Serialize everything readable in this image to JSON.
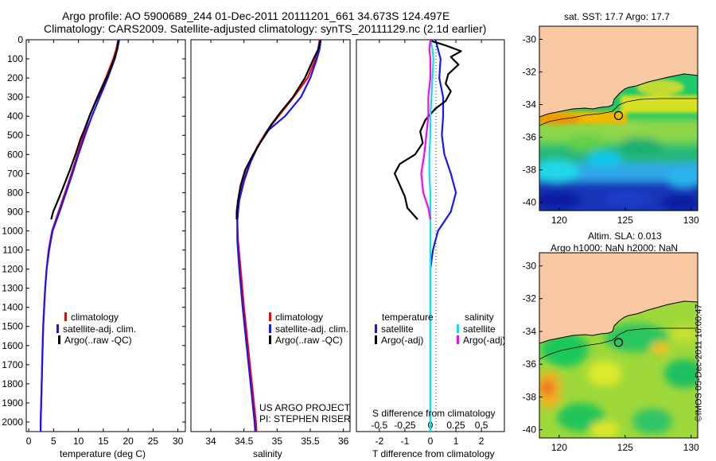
{
  "header": {
    "line1": "Argo profile: AO 5900689_244 01-Dec-2011 20111201_661 34.673S 124.497E",
    "line2": "Climatology: CARS2009. Satellite-adjusted climatology: synTS_20111129.nc (2.1d earlier)"
  },
  "colors": {
    "climatology": "#ff0000",
    "satellite": "#1515ff",
    "argo": "#000000",
    "sal_satellite": "#00e5ee",
    "sal_argo": "#ff00ff",
    "land": "#f8c9a0"
  },
  "chart_data": [
    {
      "type": "line",
      "xlabel": "temperature (deg C)",
      "ylabel": "",
      "xlim": [
        -0.5,
        31.5
      ],
      "ylim": [
        2050,
        0
      ],
      "xticks": [
        0,
        5,
        10,
        15,
        20,
        25,
        30
      ],
      "yticks": [
        0,
        100,
        200,
        300,
        400,
        500,
        600,
        700,
        800,
        900,
        1000,
        1100,
        1200,
        1300,
        1400,
        1500,
        1600,
        1700,
        1800,
        1900,
        2000
      ],
      "legend": [
        "climatology",
        "satellite-adj. clim.",
        "Argo(..raw -QC)"
      ],
      "legend_position": "lower-right",
      "series": [
        {
          "name": "climatology",
          "color": "#ff0000",
          "points": [
            [
              18,
              0
            ],
            [
              17.6,
              50
            ],
            [
              17,
              100
            ],
            [
              15.5,
              200
            ],
            [
              13.8,
              300
            ],
            [
              12.2,
              400
            ],
            [
              11,
              500
            ],
            [
              9.8,
              600
            ],
            [
              8.6,
              700
            ],
            [
              7.3,
              800
            ],
            [
              6,
              900
            ],
            [
              4.7,
              1000
            ],
            [
              4,
              1100
            ],
            [
              3.6,
              1200
            ],
            [
              3.3,
              1300
            ],
            [
              3.1,
              1400
            ],
            [
              2.9,
              1500
            ],
            [
              2.8,
              1600
            ],
            [
              2.7,
              1700
            ],
            [
              2.6,
              1800
            ],
            [
              2.5,
              1900
            ],
            [
              2.4,
              2000
            ],
            [
              2.4,
              2050
            ]
          ]
        },
        {
          "name": "satellite-adj. clim.",
          "color": "#1515ff",
          "points": [
            [
              18.2,
              0
            ],
            [
              17.8,
              50
            ],
            [
              17.3,
              100
            ],
            [
              15.9,
              200
            ],
            [
              14.3,
              300
            ],
            [
              12.7,
              400
            ],
            [
              11.3,
              500
            ],
            [
              10,
              600
            ],
            [
              8.8,
              700
            ],
            [
              7.5,
              800
            ],
            [
              6.2,
              900
            ],
            [
              4.8,
              1000
            ],
            [
              4.1,
              1100
            ],
            [
              3.6,
              1200
            ],
            [
              3.3,
              1300
            ],
            [
              3.1,
              1400
            ],
            [
              2.9,
              1500
            ],
            [
              2.8,
              1600
            ],
            [
              2.7,
              1700
            ],
            [
              2.6,
              1800
            ],
            [
              2.5,
              1900
            ],
            [
              2.4,
              2000
            ],
            [
              2.4,
              2050
            ]
          ]
        },
        {
          "name": "Argo(..raw -QC)",
          "color": "#000000",
          "points": [
            [
              18,
              5
            ],
            [
              17.8,
              50
            ],
            [
              17.2,
              100
            ],
            [
              16,
              180
            ],
            [
              14.6,
              260
            ],
            [
              13.2,
              340
            ],
            [
              12.2,
              400
            ],
            [
              11.2,
              470
            ],
            [
              10.4,
              520
            ],
            [
              9.4,
              600
            ],
            [
              8.3,
              680
            ],
            [
              7.1,
              760
            ],
            [
              6.2,
              820
            ],
            [
              5.4,
              870
            ],
            [
              4.9,
              900
            ],
            [
              4.5,
              940
            ]
          ]
        }
      ]
    },
    {
      "type": "line",
      "xlabel": "salinity",
      "ylabel": "",
      "xlim": [
        33.7,
        36.1
      ],
      "ylim": [
        2050,
        0
      ],
      "xticks": [
        34,
        34.5,
        35,
        35.5,
        36
      ],
      "legend": [
        "climatology",
        "satellite-adj. clim.",
        "Argo(..raw -QC)"
      ],
      "legend_position": "lower-right",
      "annotations": [
        "US ARGO PROJECT",
        "PI: STEPHEN RISER"
      ],
      "series": [
        {
          "name": "climatology",
          "color": "#ff0000",
          "points": [
            [
              35.64,
              0
            ],
            [
              35.62,
              50
            ],
            [
              35.58,
              100
            ],
            [
              35.46,
              200
            ],
            [
              35.25,
              300
            ],
            [
              35.02,
              400
            ],
            [
              34.84,
              480
            ],
            [
              34.7,
              560
            ],
            [
              34.58,
              650
            ],
            [
              34.48,
              750
            ],
            [
              34.42,
              850
            ],
            [
              34.4,
              950
            ],
            [
              34.41,
              1050
            ],
            [
              34.45,
              1200
            ],
            [
              34.5,
              1400
            ],
            [
              34.56,
              1600
            ],
            [
              34.62,
              1800
            ],
            [
              34.68,
              2000
            ],
            [
              34.69,
              2050
            ]
          ]
        },
        {
          "name": "satellite-adj. clim.",
          "color": "#1515ff",
          "points": [
            [
              35.66,
              0
            ],
            [
              35.64,
              50
            ],
            [
              35.6,
              100
            ],
            [
              35.5,
              200
            ],
            [
              35.36,
              300
            ],
            [
              35.12,
              400
            ],
            [
              34.88,
              470
            ],
            [
              34.72,
              550
            ],
            [
              34.6,
              640
            ],
            [
              34.5,
              740
            ],
            [
              34.43,
              840
            ],
            [
              34.4,
              940
            ],
            [
              34.4,
              1050
            ],
            [
              34.43,
              1200
            ],
            [
              34.48,
              1400
            ],
            [
              34.54,
              1600
            ],
            [
              34.6,
              1800
            ],
            [
              34.66,
              2000
            ],
            [
              34.67,
              2050
            ]
          ]
        },
        {
          "name": "Argo(..raw -QC)",
          "color": "#000000",
          "points": [
            [
              35.65,
              5
            ],
            [
              35.62,
              50
            ],
            [
              35.55,
              100
            ],
            [
              35.42,
              200
            ],
            [
              35.24,
              300
            ],
            [
              35.05,
              380
            ],
            [
              34.9,
              450
            ],
            [
              34.78,
              520
            ],
            [
              34.64,
              600
            ],
            [
              34.52,
              680
            ],
            [
              34.45,
              760
            ],
            [
              34.41,
              840
            ],
            [
              34.39,
              900
            ],
            [
              34.39,
              940
            ]
          ]
        }
      ]
    },
    {
      "type": "line",
      "xlabel": "T difference from climatology",
      "ylabel": "",
      "xlim": [
        -2.9,
        2.9
      ],
      "ylim": [
        2050,
        0
      ],
      "xticks": [
        -2,
        -1,
        0,
        1,
        2
      ],
      "secondary_axis": {
        "label": "S difference from climatology",
        "xticks": [
          -0.5,
          -0.25,
          0,
          0.25,
          0.5
        ],
        "xticklabels": [
          "-0.5",
          "-0.25",
          "0",
          "0.25",
          "0.5"
        ]
      },
      "legend": {
        "temperature": {
          "title": "temperature",
          "entries": [
            "satellite",
            "Argo(-adj)"
          ]
        },
        "salinity": {
          "title": "salinity",
          "entries": [
            "satellite",
            "Argo(-adj)"
          ]
        }
      },
      "legend_position": "lower",
      "series": [
        {
          "name": "temperature satellite",
          "color": "#1515ff",
          "points": [
            [
              0.2,
              0
            ],
            [
              0.3,
              50
            ],
            [
              0.4,
              100
            ],
            [
              0.35,
              200
            ],
            [
              0.5,
              300
            ],
            [
              0.5,
              400
            ],
            [
              0.45,
              500
            ],
            [
              0.55,
              600
            ],
            [
              0.8,
              700
            ],
            [
              1,
              800
            ],
            [
              0.8,
              900
            ],
            [
              0.3,
              1000
            ],
            [
              0.1,
              1100
            ],
            [
              0,
              1200
            ],
            [
              0,
              1400
            ],
            [
              0,
              1600
            ],
            [
              0,
              1800
            ],
            [
              0,
              2050
            ]
          ]
        },
        {
          "name": "temperature Argo(-adj)",
          "color": "#000000",
          "points": [
            [
              0,
              5
            ],
            [
              0.6,
              30
            ],
            [
              1.2,
              60
            ],
            [
              0.8,
              90
            ],
            [
              1.1,
              130
            ],
            [
              0.7,
              180
            ],
            [
              0.6,
              230
            ],
            [
              0.8,
              270
            ],
            [
              0.6,
              320
            ],
            [
              0.2,
              360
            ],
            [
              -0.2,
              420
            ],
            [
              -0.4,
              480
            ],
            [
              -0.3,
              540
            ],
            [
              -0.6,
              600
            ],
            [
              -1.2,
              650
            ],
            [
              -1.4,
              700
            ],
            [
              -1.2,
              760
            ],
            [
              -1,
              820
            ],
            [
              -0.9,
              880
            ],
            [
              -0.5,
              940
            ]
          ]
        },
        {
          "name": "salinity satellite",
          "color": "#00e5ee",
          "points": [
            [
              0,
              0
            ],
            [
              0.02,
              50
            ],
            [
              0.03,
              100
            ],
            [
              0.02,
              200
            ],
            [
              0.01,
              300
            ],
            [
              0,
              400
            ],
            [
              0,
              500
            ],
            [
              -0.01,
              600
            ],
            [
              -0.01,
              700
            ],
            [
              0,
              800
            ],
            [
              0,
              900
            ],
            [
              0,
              1000
            ],
            [
              0,
              1200
            ],
            [
              0,
              1400
            ],
            [
              0,
              1600
            ],
            [
              0,
              1800
            ],
            [
              0,
              2050
            ]
          ]
        },
        {
          "name": "salinity Argo(-adj)",
          "color": "#ff00ff",
          "points": [
            [
              0,
              0
            ],
            [
              -0.01,
              50
            ],
            [
              0,
              100
            ],
            [
              0,
              200
            ],
            [
              -0.02,
              300
            ],
            [
              -0.02,
              400
            ],
            [
              -0.04,
              500
            ],
            [
              -0.06,
              600
            ],
            [
              -0.09,
              700
            ],
            [
              -0.07,
              800
            ],
            [
              -0.02,
              880
            ],
            [
              0,
              940
            ]
          ]
        }
      ]
    },
    {
      "type": "heatmap",
      "title": "sat. SST: 17.7 Argo: 17.7",
      "xlim": [
        118.5,
        130.5
      ],
      "ylim": [
        -40.5,
        -29.2
      ],
      "xticks": [
        120,
        125,
        130
      ],
      "yticks": [
        -30,
        -32,
        -34,
        -36,
        -38,
        -40
      ],
      "marker": {
        "lon": 124.497,
        "lat": -34.673
      }
    },
    {
      "type": "heatmap",
      "title": "Altim. SLA: 0.013",
      "subtitle": "Argo h1000: NaN h2000: NaN",
      "xlim": [
        118.5,
        130.5
      ],
      "ylim": [
        -40.5,
        -29.2
      ],
      "xticks": [
        120,
        125,
        130
      ],
      "yticks": [
        -30,
        -32,
        -34,
        -36,
        -38,
        -40
      ],
      "marker": {
        "lon": 124.497,
        "lat": -34.673
      }
    }
  ],
  "watermark": "©IMOS 05-Dec-2011 16:00:47"
}
